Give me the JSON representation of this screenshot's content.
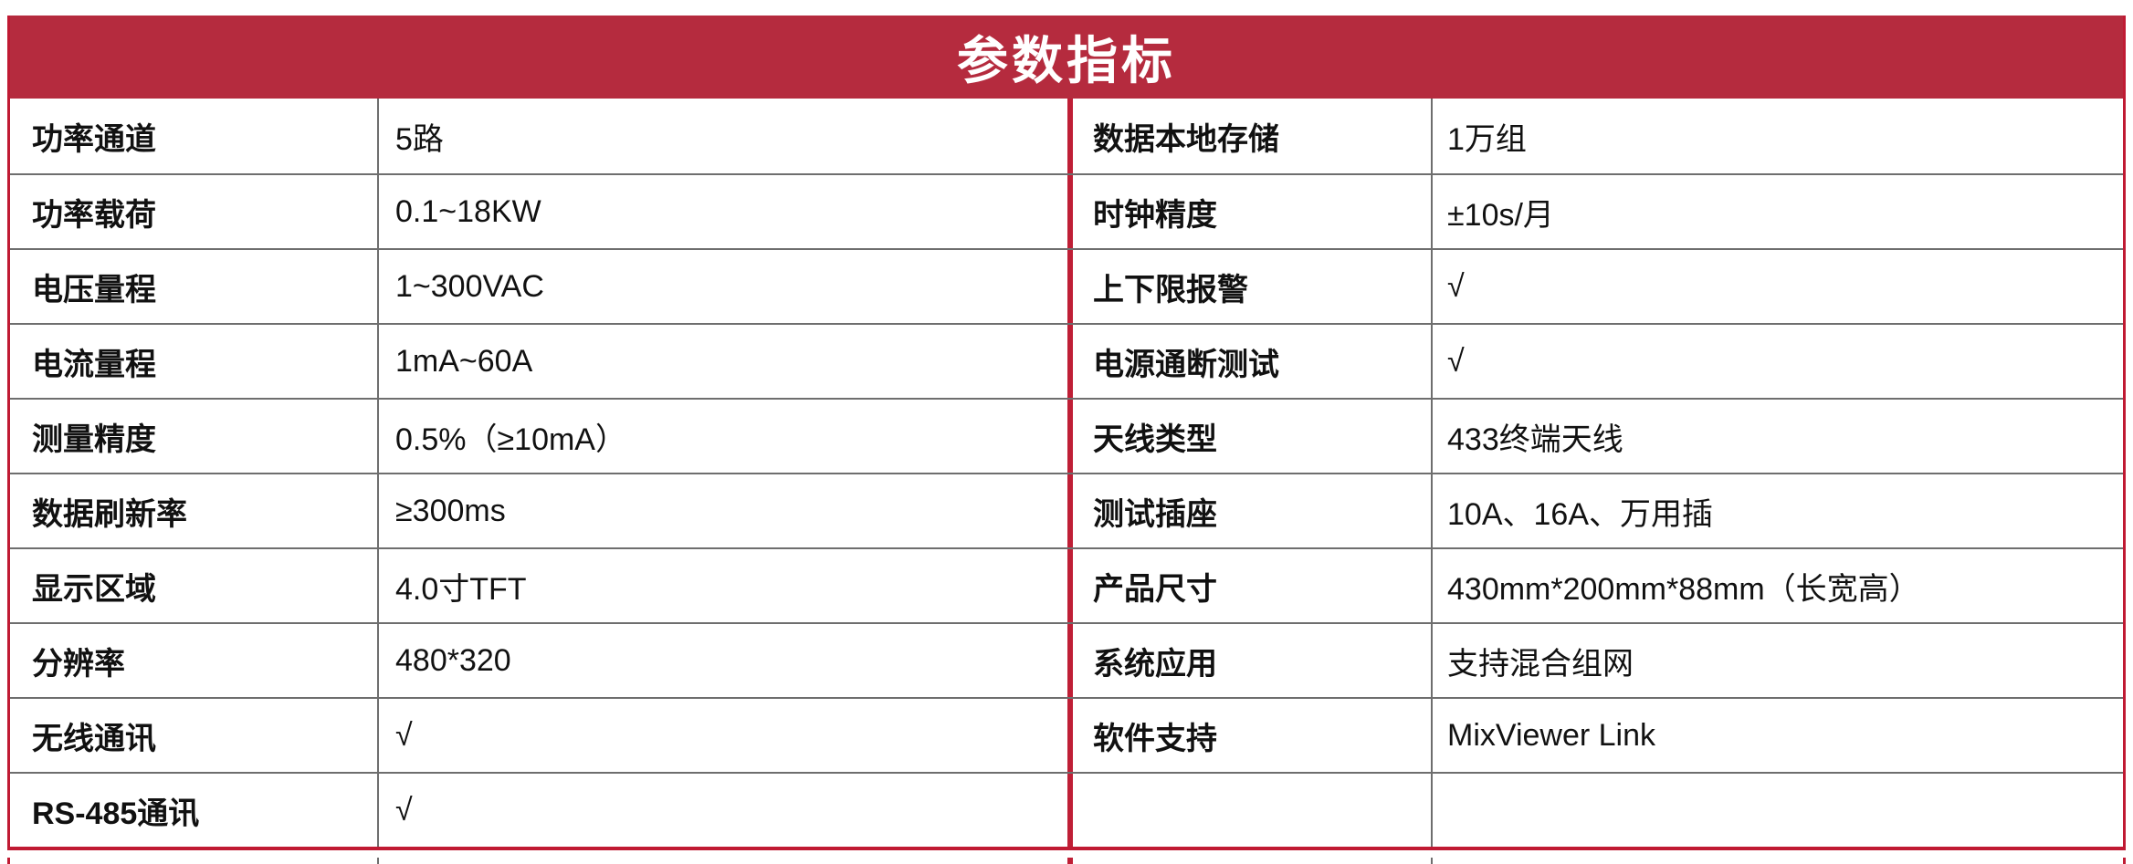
{
  "table": {
    "title": "参数指标",
    "header_color": "#b52b3e",
    "border_red": "#c01a33",
    "border_gray": "#6e6e6e",
    "rows": [
      {
        "label_left": "功率通道",
        "value_left": "5路",
        "label_right": "数据本地存储",
        "value_right": "1万组"
      },
      {
        "label_left": "功率载荷",
        "value_left": "0.1~18KW",
        "label_right": "时钟精度",
        "value_right": "±10s/月"
      },
      {
        "label_left": "电压量程",
        "value_left": "1~300VAC",
        "label_right": "上下限报警",
        "value_right": "√"
      },
      {
        "label_left": "电流量程",
        "value_left": "1mA~60A",
        "label_right": "电源通断测试",
        "value_right": "√"
      },
      {
        "label_left": "测量精度",
        "value_left": "0.5%（≥10mA）",
        "label_right": "天线类型",
        "value_right": "433终端天线"
      },
      {
        "label_left": "数据刷新率",
        "value_left": "≥300ms",
        "label_right": "测试插座",
        "value_right": "10A、16A、万用插"
      },
      {
        "label_left": "显示区域",
        "value_left": "4.0寸TFT",
        "label_right": "产品尺寸",
        "value_right": "430mm*200mm*88mm（长宽高）"
      },
      {
        "label_left": "分辨率",
        "value_left": "480*320",
        "label_right": "系统应用",
        "value_right": "支持混合组网"
      },
      {
        "label_left": "无线通讯",
        "value_left": "√",
        "label_right": "软件支持",
        "value_right": "MixViewer Link"
      },
      {
        "label_left": "RS-485通讯",
        "value_left": "√",
        "label_right": "",
        "value_right": ""
      }
    ]
  }
}
